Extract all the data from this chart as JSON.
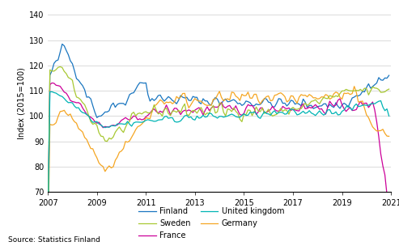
{
  "title": "",
  "ylabel": "Index (2015=100)",
  "ylim": [
    70,
    140
  ],
  "yticks": [
    70,
    80,
    90,
    100,
    110,
    120,
    130,
    140
  ],
  "xlim": [
    2007.0,
    2021.0
  ],
  "xticks": [
    2007,
    2009,
    2011,
    2013,
    2015,
    2017,
    2019,
    2021
  ],
  "colors": {
    "Finland": "#1a76c0",
    "Sweden": "#a8c832",
    "France": "#cc0099",
    "United kingdom": "#00b4b4",
    "Germany": "#f5a623"
  },
  "source_text": "Source: Statistics Finland",
  "background_color": "#ffffff",
  "grid_color": "#cccccc"
}
